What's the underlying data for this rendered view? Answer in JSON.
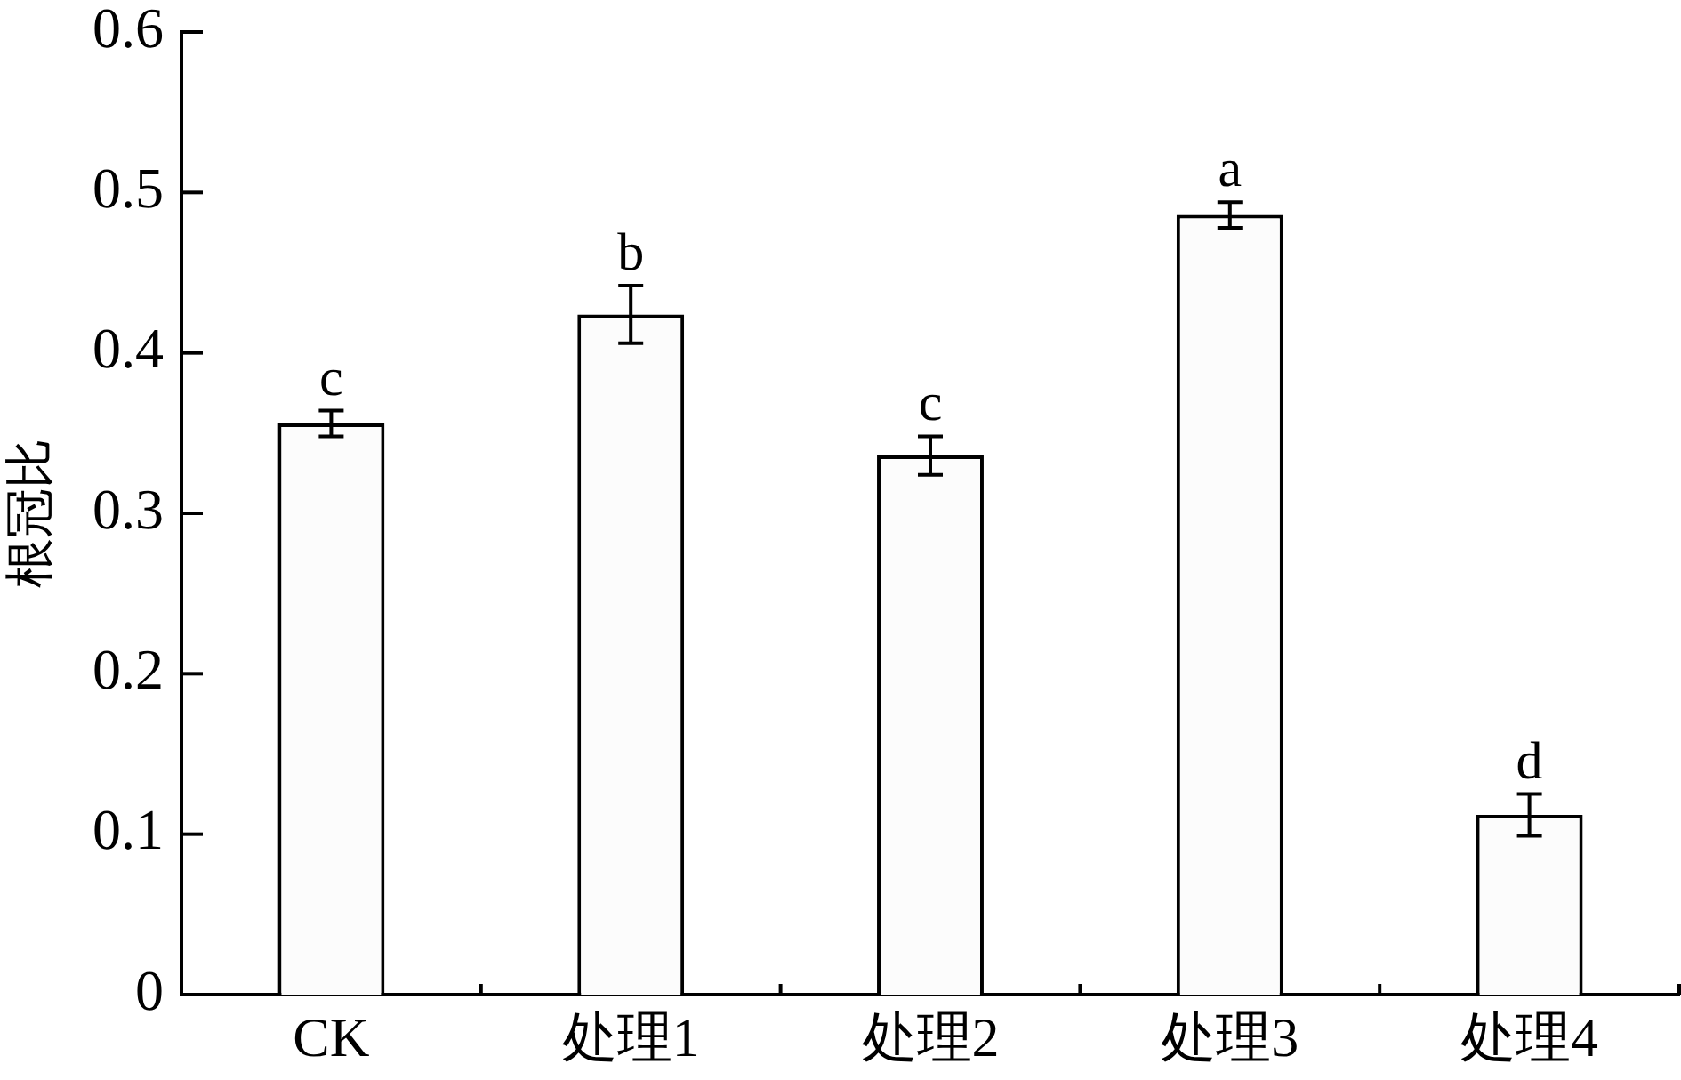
{
  "chart_data": {
    "type": "bar",
    "ylabel": "根冠比",
    "categories": [
      "CK",
      "处理1",
      "处理2",
      "处理3",
      "处理4"
    ],
    "values": [
      0.356,
      0.424,
      0.336,
      0.486,
      0.112
    ],
    "errors": [
      0.008,
      0.018,
      0.012,
      0.008,
      0.013
    ],
    "color": "#fcfcfc",
    "ylim": [
      0,
      0.6
    ],
    "yticks": [
      0,
      0.1,
      0.2,
      0.3,
      0.4,
      0.5,
      0.6
    ],
    "annotations": [
      {
        "text": "c",
        "x": "CK",
        "y": 0.364
      },
      {
        "text": "b",
        "x": "处理1",
        "y": 0.442
      },
      {
        "text": "c",
        "x": "处理2",
        "y": 0.348
      },
      {
        "text": "a",
        "x": "处理3",
        "y": 0.494
      },
      {
        "text": "d",
        "x": "处理4",
        "y": 0.125
      }
    ]
  }
}
